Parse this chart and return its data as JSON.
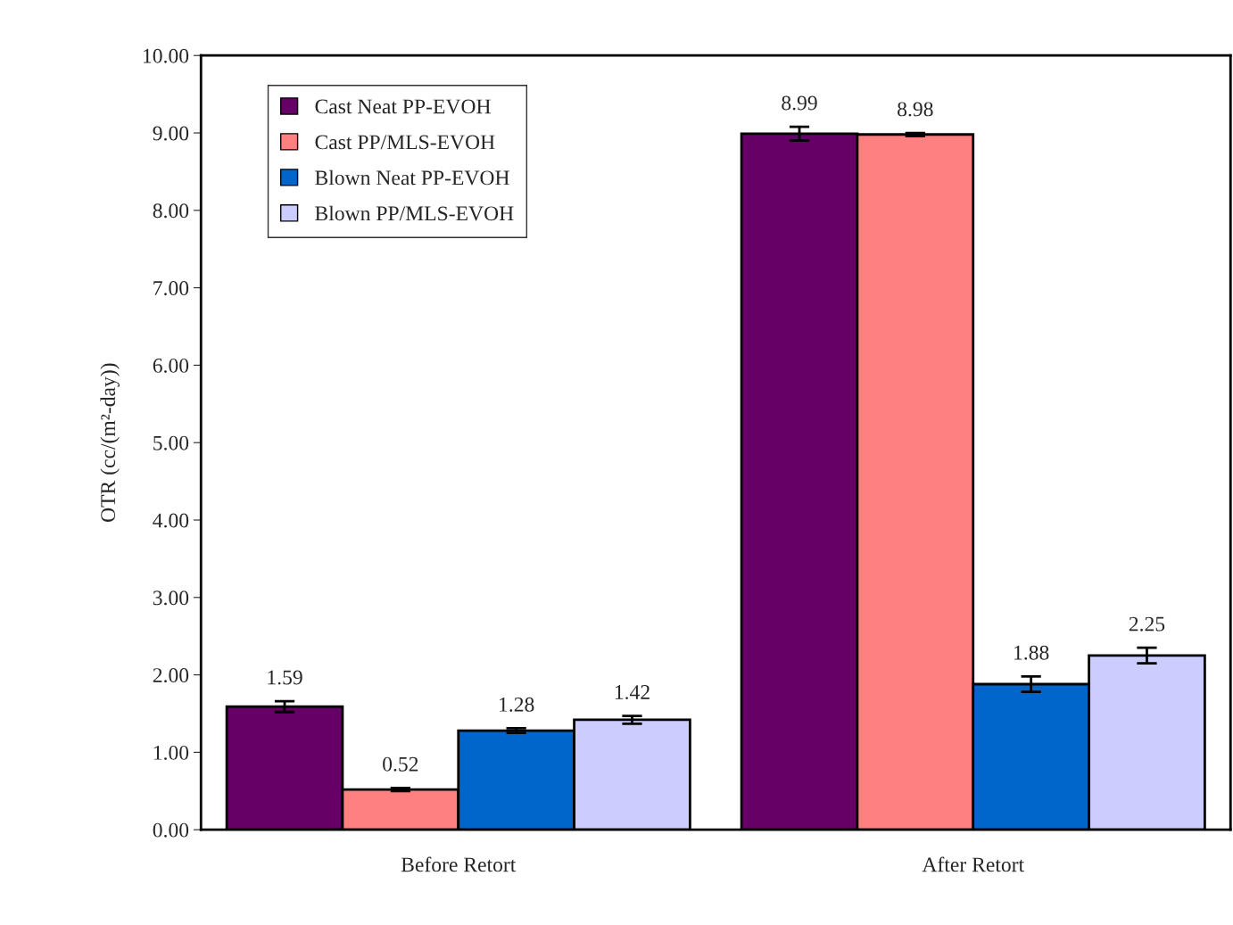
{
  "chart_data": {
    "type": "bar",
    "ylabel": "OTR (cc/(m²-day))",
    "categories": [
      "Before Retort",
      "After Retort"
    ],
    "series": [
      {
        "name": "Cast Neat PP-EVOH",
        "color": "#660066",
        "values": [
          1.59,
          8.99
        ],
        "errors": [
          0.07,
          0.09
        ]
      },
      {
        "name": "Cast PP/MLS-EVOH",
        "color": "#ff8080",
        "values": [
          0.52,
          8.98
        ],
        "errors": [
          0.02,
          0.02
        ]
      },
      {
        "name": "Blown Neat PP-EVOH",
        "color": "#0066cc",
        "values": [
          1.28,
          1.88
        ],
        "errors": [
          0.03,
          0.1
        ]
      },
      {
        "name": "Blown PP/MLS-EVOH",
        "color": "#ccccff",
        "values": [
          1.42,
          2.25
        ],
        "errors": [
          0.05,
          0.1
        ]
      }
    ],
    "ylim": [
      0,
      10
    ],
    "yticks": [
      {
        "value": 0,
        "label": "0.00"
      },
      {
        "value": 1,
        "label": "1.00"
      },
      {
        "value": 2,
        "label": "2.00"
      },
      {
        "value": 3,
        "label": "3.00"
      },
      {
        "value": 4,
        "label": "4.00"
      },
      {
        "value": 5,
        "label": "5.00"
      },
      {
        "value": 6,
        "label": "6.00"
      },
      {
        "value": 7,
        "label": "7.00"
      },
      {
        "value": 8,
        "label": "8.00"
      },
      {
        "value": 9,
        "label": "9.00"
      },
      {
        "value": 10,
        "label": "10.00"
      }
    ],
    "data_labels": true,
    "legend": "top left",
    "grid": false
  }
}
